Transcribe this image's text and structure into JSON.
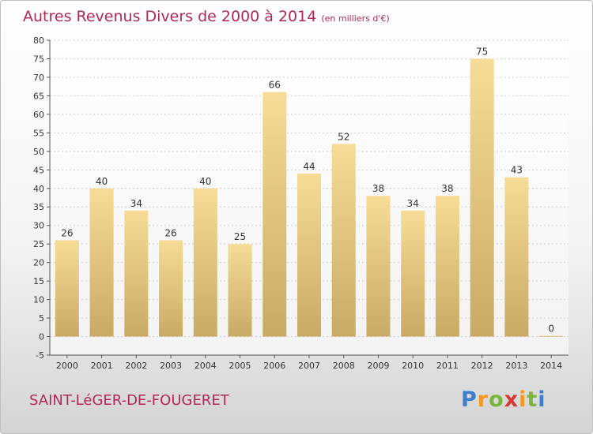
{
  "header": {
    "title": "Autres Revenus Divers de 2000 à 2014",
    "unit": "(en milliers d'€)"
  },
  "footer": {
    "location": "SAINT-LéGER-DE-FOUGERET",
    "logo": {
      "parts": [
        "P",
        "r",
        "o",
        "x",
        "i",
        "t",
        "i"
      ]
    }
  },
  "colors": {
    "title": "#b0285a",
    "bar_light": "#f6dc96",
    "bar_dark": "#c9aa64",
    "axis": "#555555",
    "grid": "#cfcfcf"
  },
  "chart_data": {
    "type": "bar",
    "title": "Autres Revenus Divers de 2000 à 2014",
    "subtitle": "(en milliers d'€)",
    "categories": [
      "2000",
      "2001",
      "2002",
      "2003",
      "2004",
      "2005",
      "2006",
      "2007",
      "2008",
      "2009",
      "2010",
      "2011",
      "2012",
      "2013",
      "2014"
    ],
    "values": [
      26,
      40,
      34,
      26,
      40,
      25,
      66,
      44,
      52,
      38,
      34,
      38,
      75,
      43,
      0
    ],
    "ylim": [
      -5,
      80
    ],
    "yticks": [
      -5,
      0,
      5,
      10,
      15,
      20,
      25,
      30,
      35,
      40,
      45,
      50,
      55,
      60,
      65,
      70,
      75,
      80
    ],
    "grid": true,
    "legend": "none"
  }
}
